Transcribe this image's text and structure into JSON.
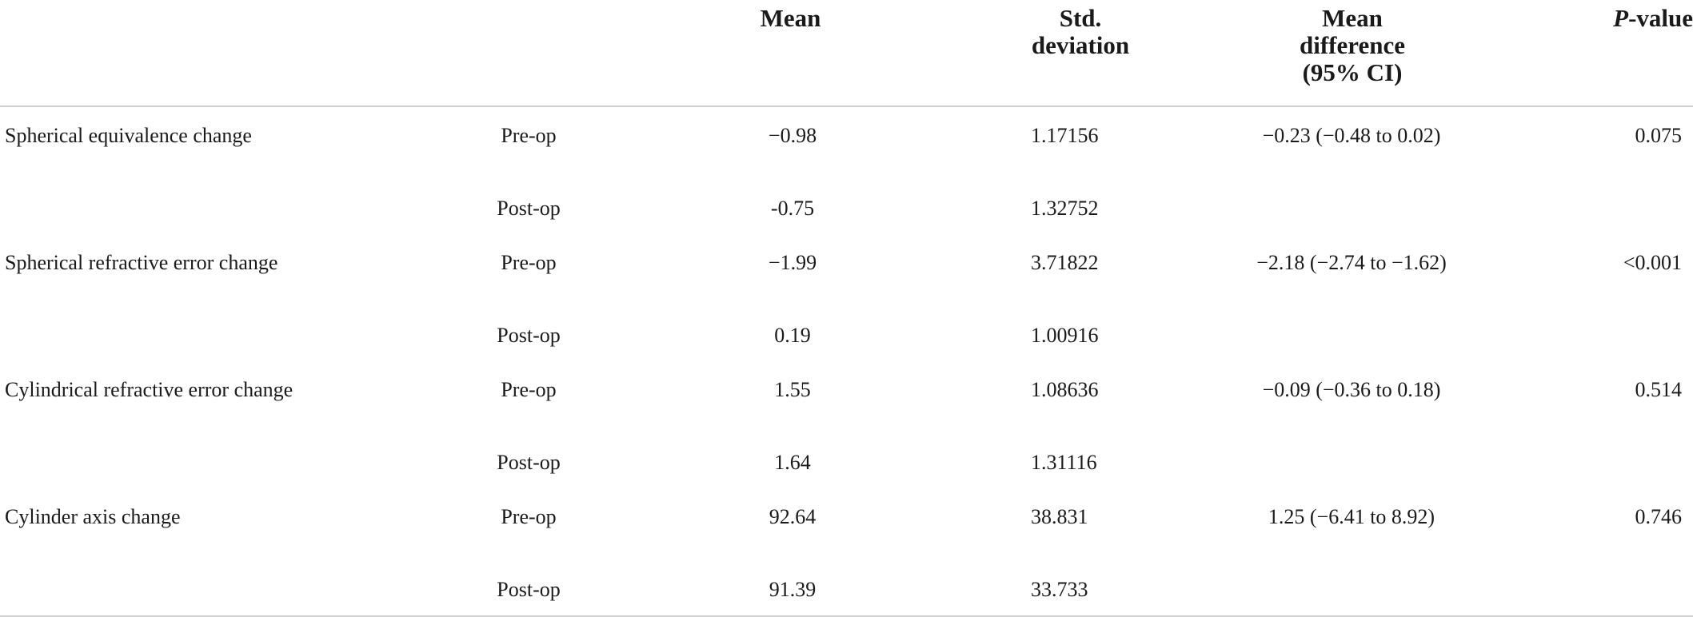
{
  "table": {
    "headers": {
      "measure": "",
      "time": "",
      "mean": "Mean",
      "sd_line1": "Std.",
      "sd_line2": "deviation",
      "diff_line1": "Mean",
      "diff_line2": "difference",
      "diff_line3": "(95% CI)",
      "p_italic": "P",
      "p_rest": "-value"
    },
    "groups": [
      {
        "measure": "Spherical equivalence change",
        "pre": {
          "label": "Pre-op",
          "mean": "−0.98",
          "sd": "1.17156"
        },
        "post": {
          "label": "Post-op",
          "mean": "-0.75",
          "sd": "1.32752"
        },
        "mean_difference": "−0.23 (−0.48 to 0.02)",
        "p_value": "0.075"
      },
      {
        "measure": "Spherical refractive error change",
        "pre": {
          "label": "Pre-op",
          "mean": "−1.99",
          "sd": "3.71822"
        },
        "post": {
          "label": "Post-op",
          "mean": "0.19",
          "sd": "1.00916"
        },
        "mean_difference": "−2.18 (−2.74 to −1.62)",
        "p_value": "<0.001"
      },
      {
        "measure": "Cylindrical refractive error change",
        "pre": {
          "label": "Pre-op",
          "mean": "1.55",
          "sd": "1.08636"
        },
        "post": {
          "label": "Post-op",
          "mean": "1.64",
          "sd": "1.31116"
        },
        "mean_difference": "−0.09 (−0.36 to 0.18)",
        "p_value": "0.514"
      },
      {
        "measure": "Cylinder axis change",
        "pre": {
          "label": "Pre-op",
          "mean": "92.64",
          "sd": "38.831"
        },
        "post": {
          "label": "Post-op",
          "mean": "91.39",
          "sd": "33.733"
        },
        "mean_difference": "1.25 (−6.41 to 8.92)",
        "p_value": "0.746"
      }
    ]
  }
}
